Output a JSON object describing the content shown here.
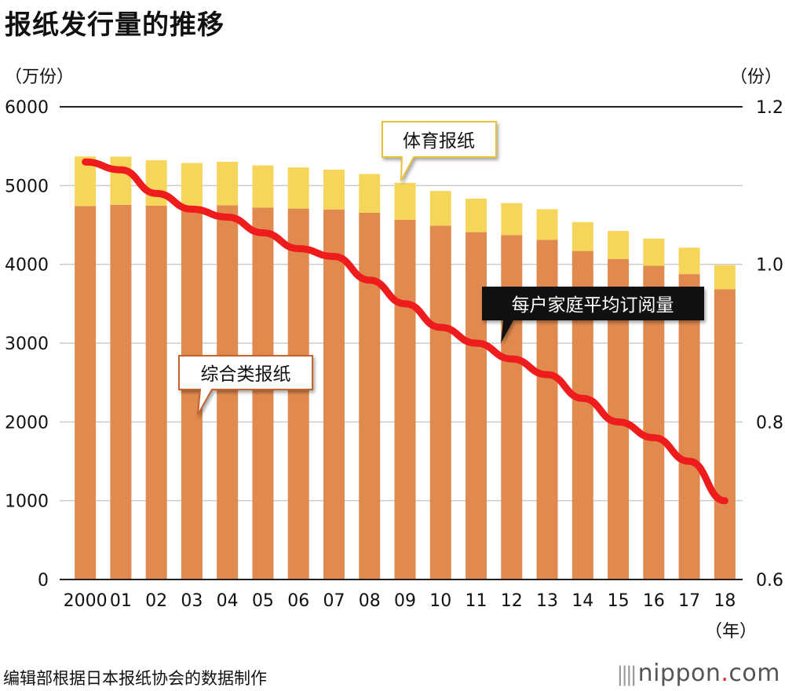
{
  "title": "报纸发行量的推移",
  "left_unit": "（万份）",
  "right_unit": "（份）",
  "year_unit": "（年）",
  "source": "编辑部根据日本报纸协会的数据制作",
  "logo": {
    "name": "nippon",
    "dot": ".",
    "suffix": "com"
  },
  "colors": {
    "general": "#e08a4f",
    "sports": "#f5d55a",
    "line": "#ee1c1c",
    "grid": "#cccccc",
    "callout_border_orange": "#c7622a",
    "callout_border_yellow": "#e8c23a"
  },
  "chart_data": {
    "type": "bar",
    "stacked": true,
    "categories": [
      "2000",
      "01",
      "02",
      "03",
      "04",
      "05",
      "06",
      "07",
      "08",
      "09",
      "10",
      "11",
      "12",
      "13",
      "14",
      "15",
      "16",
      "17",
      "18"
    ],
    "series": [
      {
        "name": "综合类报纸",
        "axis": "left",
        "values": [
          4740,
          4756,
          4745,
          4685,
          4749,
          4721,
          4708,
          4697,
          4656,
          4567,
          4491,
          4409,
          4372,
          4312,
          4170,
          4069,
          3982,
          3876,
          3683
        ]
      },
      {
        "name": "体育报纸",
        "axis": "left",
        "values": [
          630,
          612,
          576,
          602,
          553,
          535,
          523,
          505,
          491,
          468,
          441,
          425,
          406,
          388,
          366,
          355,
          346,
          336,
          307
        ]
      },
      {
        "name": "每户家庭平均订阅量",
        "type": "line",
        "axis": "right",
        "values": [
          1.13,
          1.12,
          1.09,
          1.07,
          1.06,
          1.04,
          1.02,
          1.01,
          0.98,
          0.95,
          0.92,
          0.9,
          0.88,
          0.86,
          0.83,
          0.8,
          0.78,
          0.75,
          0.7
        ]
      }
    ],
    "y_left": {
      "lim": [
        0,
        6000
      ],
      "ticks": [
        "0",
        "1000",
        "2000",
        "3000",
        "4000",
        "5000",
        "6000"
      ]
    },
    "y_right": {
      "lim": [
        0.6,
        1.2
      ],
      "ticks": [
        "0.6",
        "0.8",
        "1.0",
        "1.2"
      ],
      "tick_values": [
        0.6,
        0.8,
        1.0,
        1.2
      ]
    },
    "grid": true
  },
  "callouts": {
    "sports": "体育报纸",
    "general": "综合类报纸",
    "household": "每户家庭平均订阅量"
  }
}
